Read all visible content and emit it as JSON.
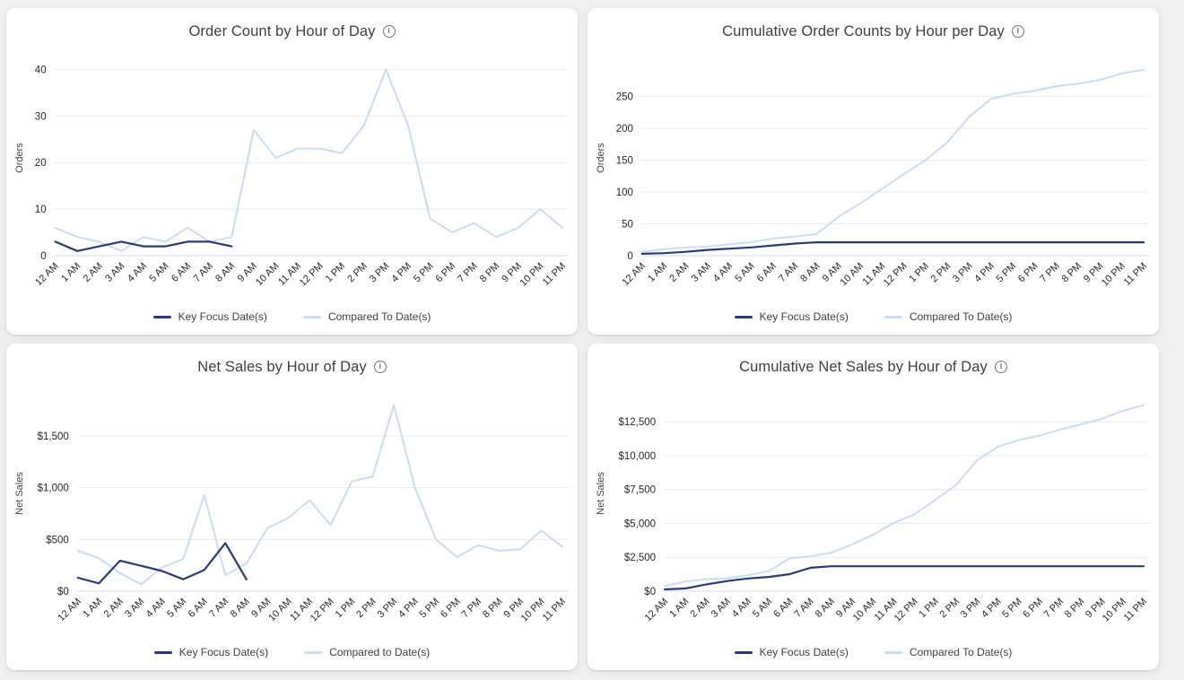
{
  "page": {
    "background_color": "#f0f0f1",
    "card_background": "#ffffff"
  },
  "styles": {
    "grid_color": "#e9e9e9",
    "axis_line_color": "#ccd6ec",
    "tick_color": "#26282c",
    "label_color": "#3c4043",
    "title_color": "#3c4043",
    "info_icon_color": "#70757a",
    "key_focus_color": "#293a76",
    "compared_color": "#c9dbf6"
  },
  "info_icon_glyph": "i",
  "chart_data": [
    {
      "type": "line",
      "title": "Order Count by Hour of Day",
      "xlabel": "",
      "ylabel": "Orders",
      "grid": true,
      "legend_position": "bottom",
      "categories": [
        "12 AM",
        "1 AM",
        "2 AM",
        "3 AM",
        "4 AM",
        "5 AM",
        "6 AM",
        "7 AM",
        "8 AM",
        "9 AM",
        "10 AM",
        "11 AM",
        "12 PM",
        "1 PM",
        "2 PM",
        "3 PM",
        "4 PM",
        "5 PM",
        "6 PM",
        "7 PM",
        "8 PM",
        "9 PM",
        "10 PM",
        "11 PM"
      ],
      "yticks": [
        0,
        10,
        20,
        30,
        40
      ],
      "ytick_labels": [
        "0",
        "10",
        "20",
        "30",
        "40"
      ],
      "ylim": [
        0,
        42
      ],
      "series": [
        {
          "name": "Key Focus Date(s)",
          "color": "#293a76",
          "values": [
            3,
            1,
            2,
            3,
            2,
            2,
            3,
            3,
            2
          ]
        },
        {
          "name": "Compared To Date(s)",
          "color": "#c9dbf6",
          "values": [
            6,
            4,
            3,
            1,
            4,
            3,
            6,
            3,
            4,
            27,
            21,
            23,
            23,
            22,
            28,
            40,
            28,
            8,
            5,
            7,
            4,
            6,
            10,
            6
          ]
        }
      ]
    },
    {
      "type": "line",
      "title": "Cumulative Order Counts by Hour per Day",
      "xlabel": "",
      "ylabel": "Orders",
      "grid": true,
      "legend_position": "bottom",
      "categories": [
        "12 AM",
        "1 AM",
        "2 AM",
        "3 AM",
        "4 AM",
        "5 AM",
        "6 AM",
        "7 AM",
        "8 AM",
        "9 AM",
        "10 AM",
        "11 AM",
        "12 PM",
        "1 PM",
        "2 PM",
        "3 PM",
        "4 PM",
        "5 PM",
        "6 PM",
        "7 PM",
        "8 PM",
        "9 PM",
        "10 PM",
        "11 PM"
      ],
      "yticks": [
        0,
        50,
        100,
        150,
        200,
        250
      ],
      "ytick_labels": [
        "0",
        "50",
        "100",
        "150",
        "200",
        "250"
      ],
      "ylim": [
        0,
        307
      ],
      "series": [
        {
          "name": "Key Focus Date(s)",
          "color": "#293a76",
          "values": [
            3,
            4,
            6,
            9,
            11,
            13,
            16,
            19,
            21,
            21,
            21,
            21,
            21,
            21,
            21,
            21,
            21,
            21,
            21,
            21,
            21,
            21,
            21,
            21
          ]
        },
        {
          "name": "Compared To Date(s)",
          "color": "#c9dbf6",
          "values": [
            6,
            10,
            13,
            14,
            18,
            21,
            27,
            30,
            34,
            61,
            82,
            105,
            128,
            150,
            178,
            218,
            246,
            254,
            259,
            266,
            270,
            276,
            286,
            292
          ]
        }
      ]
    },
    {
      "type": "line",
      "title": "Net Sales by Hour of Day",
      "xlabel": "",
      "ylabel": "Net Sales",
      "grid": true,
      "legend_position": "bottom",
      "categories": [
        "12 AM",
        "1 AM",
        "2 AM",
        "3 AM",
        "4 AM",
        "5 AM",
        "6 AM",
        "7 AM",
        "8 AM",
        "9 AM",
        "10 AM",
        "11 AM",
        "12 PM",
        "1 PM",
        "2 PM",
        "3 PM",
        "4 PM",
        "5 PM",
        "6 PM",
        "7 PM",
        "8 PM",
        "9 PM",
        "10 PM",
        "11 PM"
      ],
      "yticks": [
        0,
        500,
        1000,
        1500
      ],
      "ytick_labels": [
        "$0",
        "$500",
        "$1,000",
        "$1,500"
      ],
      "ylim": [
        0,
        1890
      ],
      "series": [
        {
          "name": "Key Focus Date(s)",
          "color": "#293a76",
          "values": [
            130,
            75,
            295,
            245,
            195,
            115,
            205,
            465,
            115
          ]
        },
        {
          "name": "Compared to Date(s)",
          "color": "#c9dbf6",
          "values": [
            390,
            320,
            175,
            65,
            230,
            310,
            930,
            155,
            265,
            610,
            710,
            880,
            640,
            1060,
            1110,
            1800,
            1000,
            500,
            330,
            445,
            390,
            405,
            585,
            430
          ]
        }
      ]
    },
    {
      "type": "line",
      "title": "Cumulative Net Sales by Hour of Day",
      "xlabel": "",
      "ylabel": "Net Sales",
      "grid": true,
      "legend_position": "bottom",
      "categories": [
        "12 AM",
        "1 AM",
        "2 AM",
        "3 AM",
        "4 AM",
        "5 AM",
        "6 AM",
        "7 AM",
        "8 AM",
        "9 AM",
        "10 AM",
        "11 AM",
        "12 PM",
        "1 PM",
        "2 PM",
        "3 PM",
        "4 PM",
        "5 PM",
        "6 PM",
        "7 PM",
        "8 PM",
        "9 PM",
        "10 PM",
        "11 PM"
      ],
      "yticks": [
        0,
        2500,
        5000,
        7500,
        10000,
        12500
      ],
      "ytick_labels": [
        "$0",
        "$2,500",
        "$5,000",
        "$7,500",
        "$10,000",
        "$12,500"
      ],
      "ylim": [
        0,
        14430
      ],
      "series": [
        {
          "name": "Key Focus Date(s)",
          "color": "#293a76",
          "values": [
            130,
            205,
            500,
            745,
            940,
            1055,
            1260,
            1725,
            1840,
            1840,
            1840,
            1840,
            1840,
            1840,
            1840,
            1840,
            1840,
            1840,
            1840,
            1840,
            1840,
            1840,
            1840,
            1840
          ]
        },
        {
          "name": "Compared To Date(s)",
          "color": "#c9dbf6",
          "values": [
            390,
            710,
            885,
            950,
            1180,
            1490,
            2420,
            2575,
            2840,
            3450,
            4160,
            5040,
            5680,
            6740,
            7850,
            9650,
            10650,
            11150,
            11480,
            11925,
            12315,
            12720,
            13305,
            13735
          ]
        }
      ]
    }
  ]
}
